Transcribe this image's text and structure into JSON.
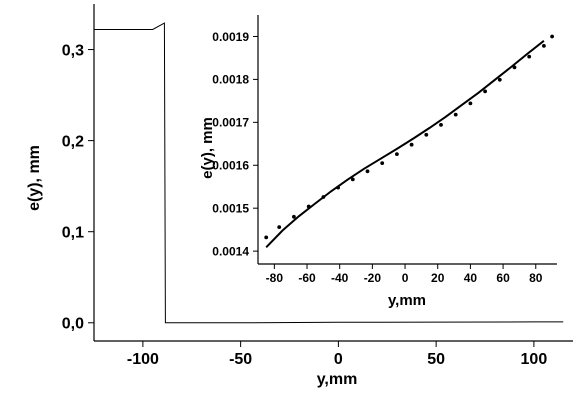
{
  "chart_data": [
    {
      "type": "line",
      "xlabel": "y,mm",
      "ylabel": "e(y), mm",
      "xlim": [
        -125,
        120
      ],
      "ylim": [
        -0.02,
        0.35
      ],
      "x_ticks": [
        -100,
        -50,
        0,
        50,
        100
      ],
      "x_tick_labels": [
        "-100",
        "-50",
        "0",
        "50",
        "100"
      ],
      "y_ticks": [
        0.0,
        0.1,
        0.2,
        0.3
      ],
      "y_tick_labels": [
        "0,0",
        "0,1",
        "0,2",
        "0,3"
      ],
      "grid": false,
      "series": [
        {
          "x": [
            -125,
            -95,
            -89,
            -88.5,
            -87.5,
            -50,
            0,
            50,
            100,
            115
          ],
          "y": [
            0.322,
            0.322,
            0.329,
            0.0,
            0.0,
            0.0,
            0.0005,
            0.0007,
            0.001,
            0.001
          ]
        }
      ]
    },
    {
      "type": "line",
      "xlabel": "y,mm",
      "ylabel": "e(y), mm",
      "xlim": [
        -90,
        93
      ],
      "ylim": [
        0.00137,
        0.00195
      ],
      "x_ticks": [
        -80,
        -60,
        -40,
        -20,
        0,
        20,
        40,
        60,
        80
      ],
      "x_tick_labels": [
        "-80",
        "-60",
        "-40",
        "-20",
        "0",
        "20",
        "40",
        "60",
        "80"
      ],
      "y_ticks": [
        0.0014,
        0.0015,
        0.0016,
        0.0017,
        0.0018,
        0.0019
      ],
      "y_tick_labels": [
        "0.0014",
        "0.0015",
        "0.0016",
        "0.0017",
        "0.0018",
        "0.0019"
      ],
      "grid": false,
      "series": [
        {
          "style": "solid line",
          "x": [
            -85,
            -75,
            -65,
            -55,
            -45,
            -35,
            -25,
            -15,
            -5,
            5,
            15,
            25,
            35,
            45,
            55,
            65,
            75,
            85
          ],
          "y": [
            0.001409,
            0.001448,
            0.001481,
            0.001511,
            0.00154,
            0.001567,
            0.001592,
            0.001615,
            0.001638,
            0.001662,
            0.001687,
            0.001713,
            0.001741,
            0.001769,
            0.001799,
            0.001829,
            0.00186,
            0.00189
          ]
        },
        {
          "style": "dots",
          "x": [
            -85,
            -77,
            -68,
            -59,
            -50,
            -41,
            -32,
            -23,
            -14,
            -5,
            4,
            13,
            22,
            31,
            40,
            49,
            58,
            67,
            76,
            85,
            90
          ],
          "y": [
            0.001432,
            0.001456,
            0.00148,
            0.001504,
            0.001526,
            0.001548,
            0.001567,
            0.001586,
            0.001605,
            0.001626,
            0.001648,
            0.001671,
            0.001694,
            0.001718,
            0.001744,
            0.001772,
            0.001799,
            0.001828,
            0.001853,
            0.001878,
            0.0019
          ]
        }
      ]
    }
  ]
}
